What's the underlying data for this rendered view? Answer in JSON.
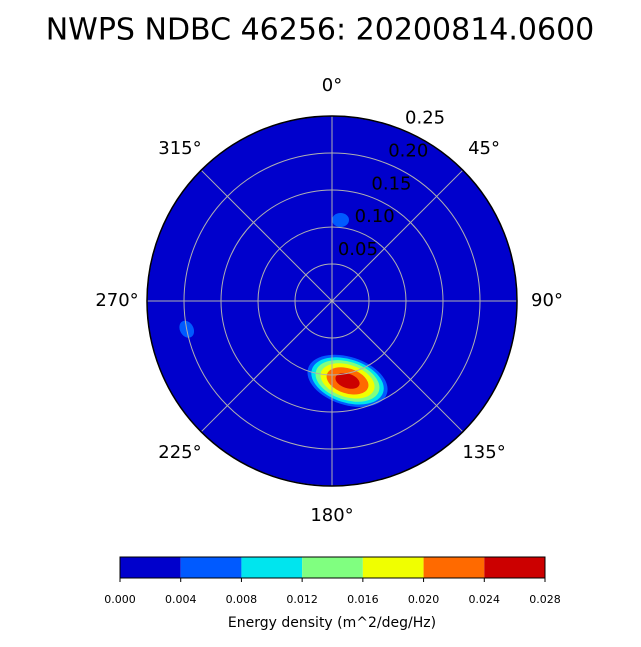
{
  "chart_data": {
    "type": "polar-contour",
    "title": "NWPS NDBC 46256: 20200814.0600",
    "rlim": [
      0,
      0.25
    ],
    "rticks": [
      {
        "value": 0.05,
        "label": "0.05"
      },
      {
        "value": 0.1,
        "label": "0.10"
      },
      {
        "value": 0.15,
        "label": "0.15"
      },
      {
        "value": 0.2,
        "label": "0.20"
      },
      {
        "value": 0.25,
        "label": "0.25"
      }
    ],
    "thetaticks": [
      {
        "value": 0,
        "label": "0°"
      },
      {
        "value": 45,
        "label": "45°"
      },
      {
        "value": 90,
        "label": "90°"
      },
      {
        "value": 135,
        "label": "135°"
      },
      {
        "value": 180,
        "label": "180°"
      },
      {
        "value": 225,
        "label": "225°"
      },
      {
        "value": 270,
        "label": "270°"
      },
      {
        "value": 315,
        "label": "315°"
      }
    ],
    "grid": true,
    "features": [
      {
        "direction": 6,
        "frequency": 0.11,
        "peak": 0.008
      },
      {
        "direction": 169,
        "frequency": 0.11,
        "peak": 0.026
      },
      {
        "direction": 259,
        "frequency": 0.2,
        "peak": 0.005
      }
    ],
    "colorbar": {
      "label": "Energy density (m^2/deg/Hz)",
      "levels": [
        {
          "value": 0,
          "label": "0.000"
        },
        {
          "value": 0.004,
          "label": "0.004"
        },
        {
          "value": 0.008,
          "label": "0.008"
        },
        {
          "value": 0.012,
          "label": "0.012"
        },
        {
          "value": 0.016,
          "label": "0.016"
        },
        {
          "value": 0.02,
          "label": "0.020"
        },
        {
          "value": 0.024,
          "label": "0.024"
        },
        {
          "value": 0.028,
          "label": "0.028"
        }
      ],
      "colors": [
        "#0000cc",
        "#005aff",
        "#00e5ee",
        "#80ff80",
        "#f0ff00",
        "#ff6a00",
        "#cc0000"
      ]
    }
  }
}
